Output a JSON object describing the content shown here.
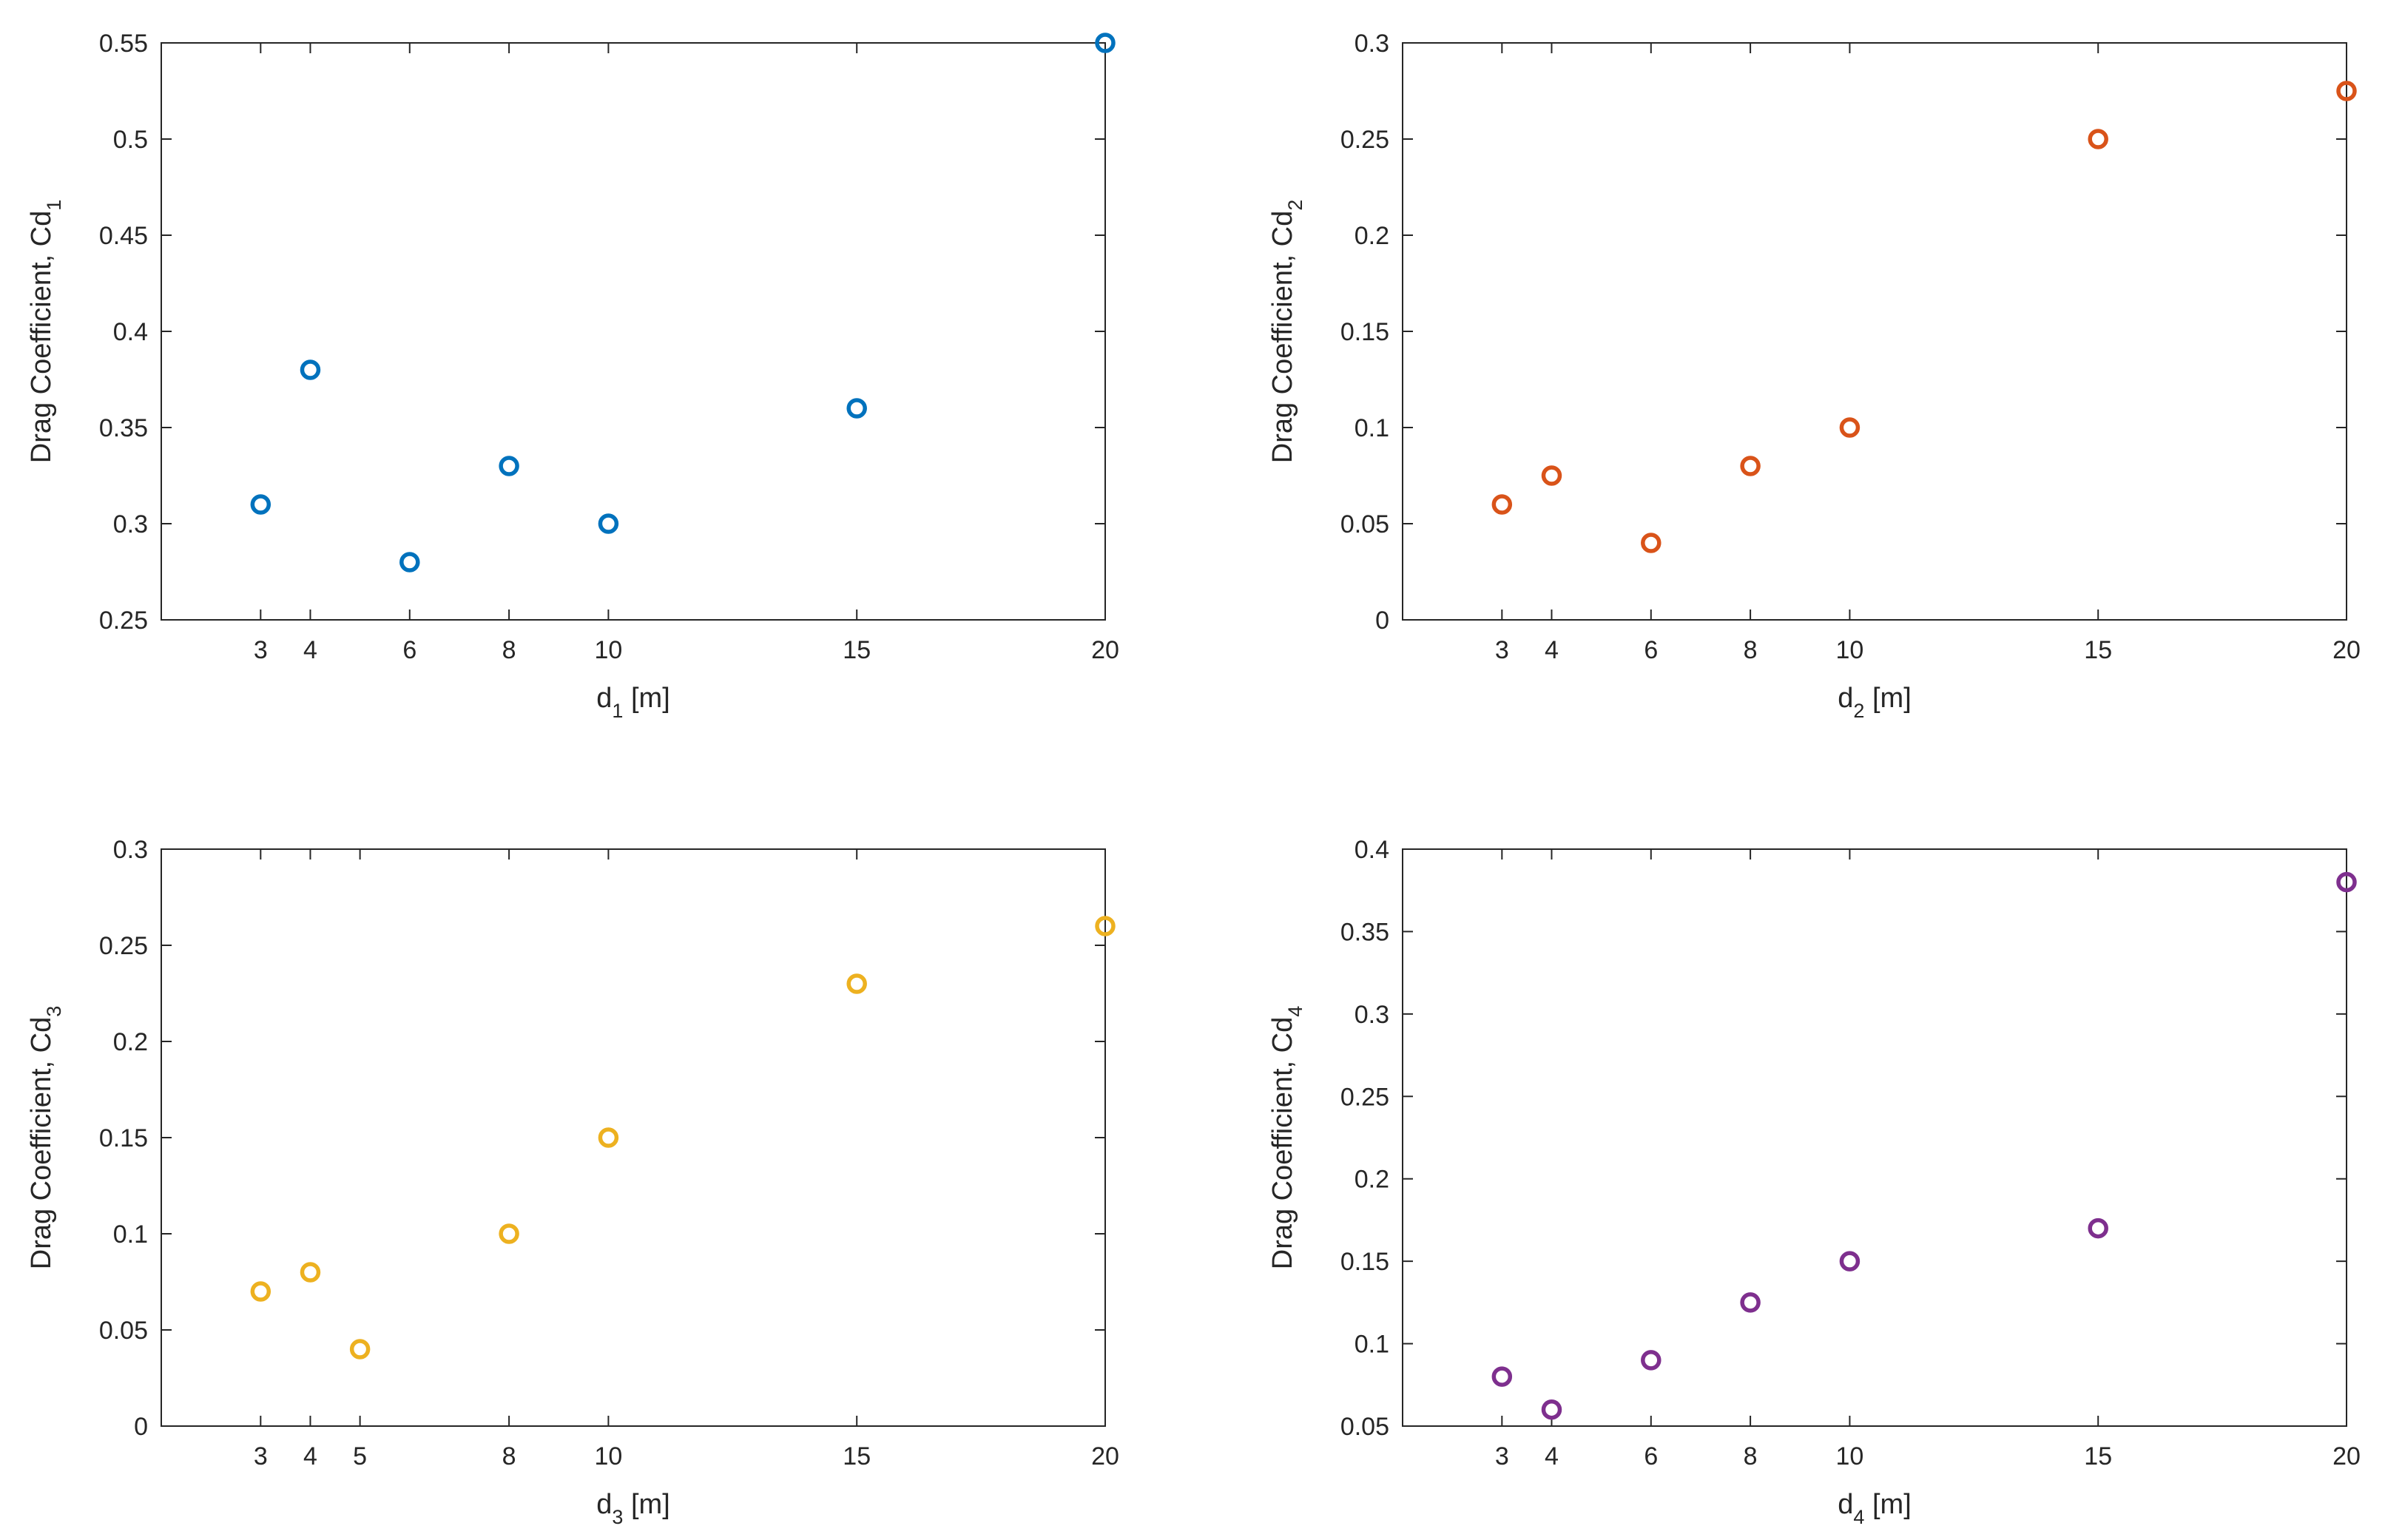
{
  "chart_data": [
    {
      "type": "scatter",
      "marker": "circle-open",
      "color": "#0072BD",
      "x": [
        3,
        4,
        6,
        8,
        10,
        15,
        20
      ],
      "y": [
        0.31,
        0.38,
        0.28,
        0.33,
        0.3,
        0.36,
        0.55
      ],
      "xlim": [
        1,
        20
      ],
      "ylim": [
        0.25,
        0.55
      ],
      "xticks": [
        "3",
        "4",
        "6",
        "8",
        "10",
        "15",
        "20"
      ],
      "yticks": [
        "0.25",
        "0.3",
        "0.35",
        "0.4",
        "0.45",
        "0.5",
        "0.55"
      ],
      "xlabel": {
        "base": "d",
        "sub": "1",
        "suffix": " [m]"
      },
      "ylabel": {
        "base": "Drag Coefficient, Cd",
        "sub": "1"
      },
      "grid": false
    },
    {
      "type": "scatter",
      "marker": "circle-open",
      "color": "#D95319",
      "x": [
        3,
        4,
        6,
        8,
        10,
        15,
        20
      ],
      "y": [
        0.06,
        0.075,
        0.04,
        0.08,
        0.1,
        0.25,
        0.275
      ],
      "xlim": [
        1,
        20
      ],
      "ylim": [
        0,
        0.3
      ],
      "xticks": [
        "3",
        "4",
        "6",
        "8",
        "10",
        "15",
        "20"
      ],
      "yticks": [
        "0",
        "0.05",
        "0.1",
        "0.15",
        "0.2",
        "0.25",
        "0.3"
      ],
      "xlabel": {
        "base": "d",
        "sub": "2",
        "suffix": " [m]"
      },
      "ylabel": {
        "base": "Drag Coefficient, Cd",
        "sub": "2"
      },
      "grid": false
    },
    {
      "type": "scatter",
      "marker": "circle-open",
      "color": "#EDB120",
      "x": [
        3,
        4,
        5,
        8,
        10,
        15,
        20
      ],
      "y": [
        0.07,
        0.08,
        0.04,
        0.1,
        0.15,
        0.23,
        0.26
      ],
      "xlim": [
        1,
        20
      ],
      "ylim": [
        0,
        0.3
      ],
      "xticks": [
        "3",
        "4",
        "5",
        "8",
        "10",
        "15",
        "20"
      ],
      "yticks": [
        "0",
        "0.05",
        "0.1",
        "0.15",
        "0.2",
        "0.25",
        "0.3"
      ],
      "xlabel": {
        "base": "d",
        "sub": "3",
        "suffix": " [m]"
      },
      "ylabel": {
        "base": "Drag Coefficient, Cd",
        "sub": "3"
      },
      "grid": false
    },
    {
      "type": "scatter",
      "marker": "circle-open",
      "color": "#7E2F8E",
      "x": [
        3,
        4,
        6,
        8,
        10,
        15,
        20
      ],
      "y": [
        0.08,
        0.06,
        0.09,
        0.125,
        0.15,
        0.17,
        0.38
      ],
      "xlim": [
        1,
        20
      ],
      "ylim": [
        0.05,
        0.4
      ],
      "xticks": [
        "3",
        "4",
        "6",
        "8",
        "10",
        "15",
        "20"
      ],
      "yticks": [
        "0.05",
        "0.1",
        "0.15",
        "0.2",
        "0.25",
        "0.3",
        "0.35",
        "0.4"
      ],
      "xlabel": {
        "base": "d",
        "sub": "4",
        "suffix": " [m]"
      },
      "ylabel": {
        "base": "Drag Coefficient, Cd",
        "sub": "4"
      },
      "grid": false
    }
  ]
}
